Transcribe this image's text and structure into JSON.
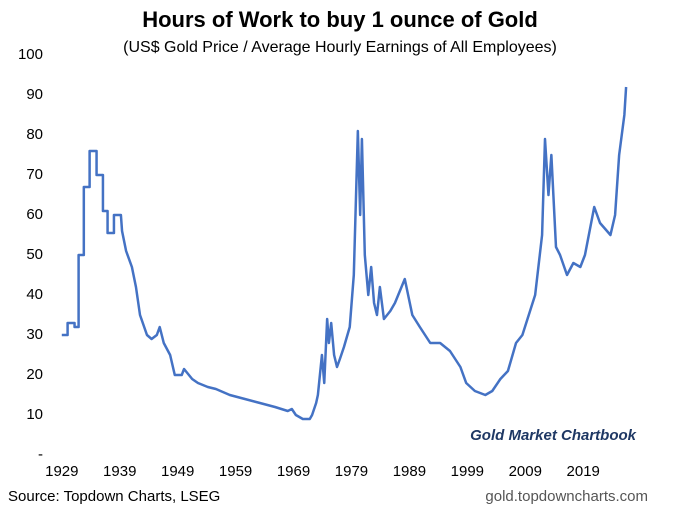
{
  "chart_data": {
    "type": "line",
    "title": "Hours of Work to buy 1 ounce of Gold",
    "subtitle": "(US$ Gold Price / Average Hourly Earnings of All Employees)",
    "annotation": "Gold Market Chartbook",
    "source": "Source: Topdown Charts, LSEG",
    "website": "gold.topdowncharts.com",
    "xlim": [
      1926.1,
      2028.8
    ],
    "xticks": [
      1929,
      1939,
      1949,
      1959,
      1969,
      1979,
      1989,
      1999,
      2009,
      2019
    ],
    "ylim": [
      0,
      100
    ],
    "yticks": [
      {
        "value": 0,
        "label": "-"
      },
      10,
      20,
      30,
      40,
      50,
      60,
      70,
      80,
      90,
      100
    ],
    "grid": false,
    "series": [
      {
        "color": "#4472c4",
        "x": [
          1929.0,
          1930.0,
          1930.0,
          1931.2,
          1931.2,
          1931.9,
          1931.9,
          1932.8,
          1932.8,
          1933.8,
          1933.8,
          1935.0,
          1935.0,
          1936.1,
          1936.1,
          1936.9,
          1936.9,
          1938.0,
          1938.0,
          1939.2,
          1939.4,
          1940.1,
          1941.1,
          1941.8,
          1942.5,
          1943.7,
          1944.5,
          1945.4,
          1945.9,
          1946.6,
          1947.7,
          1948.5,
          1949.7,
          1950.1,
          1951.5,
          1952.5,
          1954.2,
          1955.6,
          1958.0,
          1960.6,
          1963.2,
          1965.8,
          1968.0,
          1968.7,
          1969.4,
          1970.6,
          1971.8,
          1972.2,
          1972.9,
          1973.2,
          1973.9,
          1974.3,
          1974.8,
          1975.1,
          1975.5,
          1976.0,
          1976.5,
          1977.0,
          1977.7,
          1978.7,
          1979.4,
          1980.1,
          1980.5,
          1980.8,
          1981.3,
          1981.9,
          1982.4,
          1982.9,
          1983.4,
          1983.9,
          1984.6,
          1985.7,
          1986.5,
          1988.2,
          1989.5,
          1990.8,
          1992.6,
          1994.3,
          1996.0,
          1997.8,
          1998.8,
          2000.3,
          2002.1,
          2003.3,
          2004.7,
          2006.0,
          2007.4,
          2008.5,
          2010.7,
          2011.9,
          2012.4,
          2013.0,
          2013.5,
          2014.3,
          2015.0,
          2016.2,
          2017.3,
          2018.5,
          2019.3,
          2020.9,
          2021.9,
          2023.7,
          2024.5,
          2025.2,
          2026.1,
          2026.4
        ],
        "values": [
          30,
          30,
          33,
          33,
          32,
          32,
          50,
          50,
          67,
          67,
          76,
          76,
          70,
          70,
          61,
          61,
          55.5,
          55.5,
          60,
          60,
          56,
          51,
          47,
          42,
          35,
          30,
          29,
          30,
          32,
          28,
          25,
          20,
          20,
          21.5,
          19,
          18,
          17,
          16.5,
          15,
          14,
          13,
          12,
          11,
          11.5,
          10,
          9,
          9,
          10,
          13,
          15,
          25,
          18,
          34,
          28,
          33,
          25,
          22,
          24,
          27,
          32,
          45,
          81,
          60,
          79,
          50,
          40,
          47,
          38,
          35,
          42,
          34,
          36,
          38,
          44,
          35,
          32,
          28,
          28,
          26,
          22,
          18,
          16,
          15,
          16,
          19,
          21,
          28,
          30,
          40,
          55,
          79,
          65,
          75,
          52,
          50,
          45,
          48,
          47,
          50,
          62,
          58,
          55,
          60,
          75,
          85,
          92
        ]
      }
    ]
  }
}
